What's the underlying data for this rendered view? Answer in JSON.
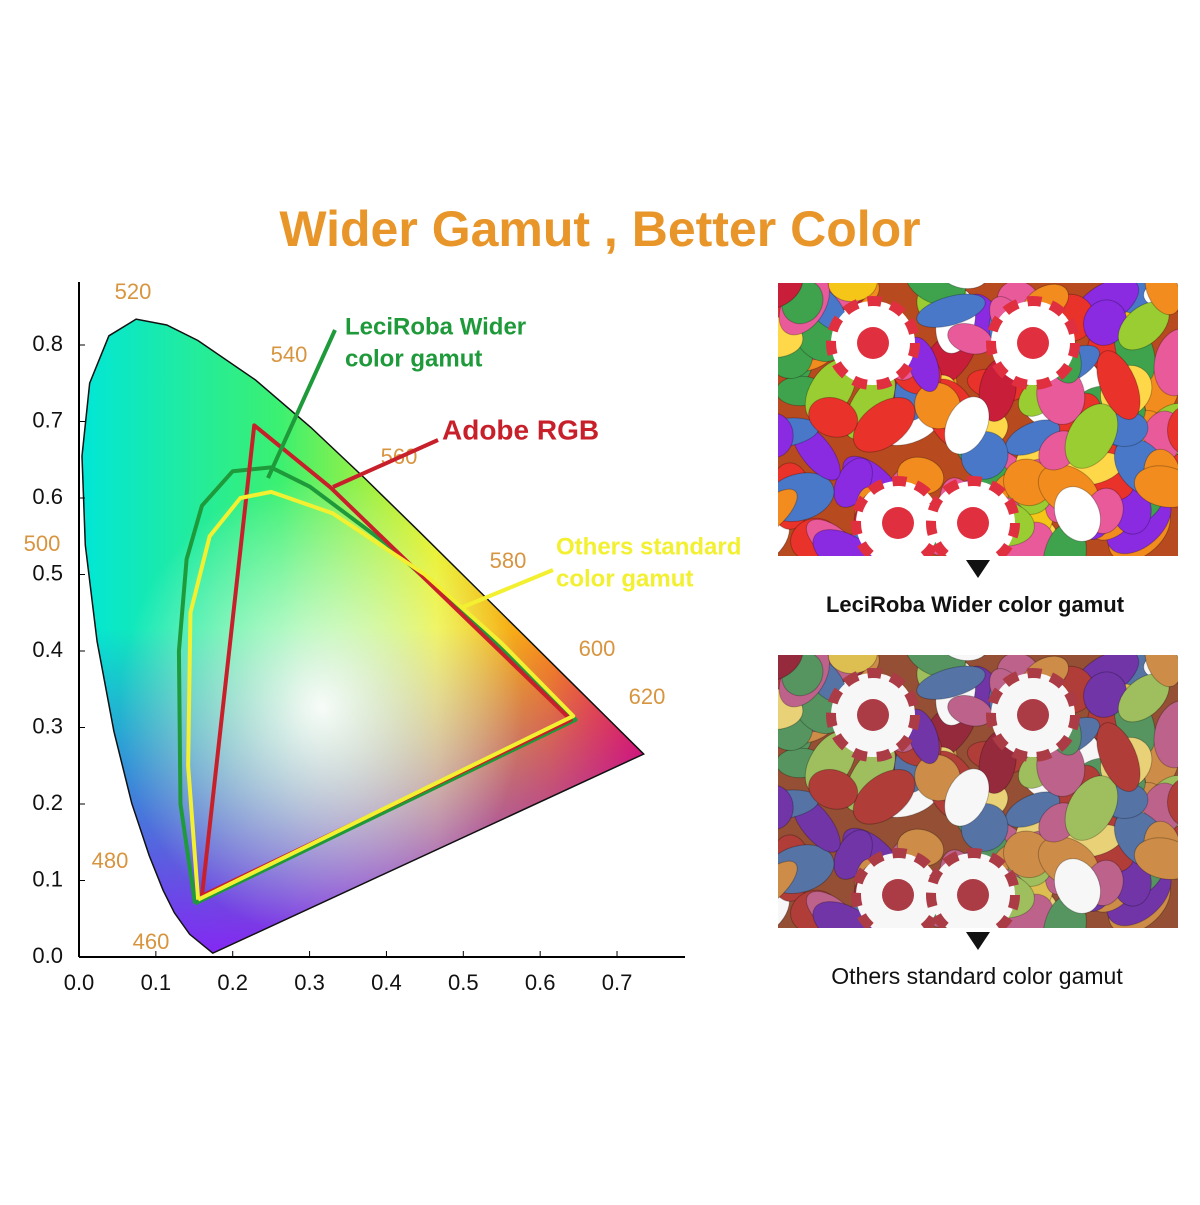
{
  "chart_data": {
    "type": "line",
    "title": "Wider Gamut , Better Color",
    "xlim": [
      0,
      0.79
    ],
    "ylim": [
      0,
      0.88
    ],
    "xticks": [
      {
        "value": 0,
        "label": "0.0"
      },
      0.1,
      0.2,
      0.3,
      0.4,
      0.5,
      0.6,
      0.7
    ],
    "yticks": [
      {
        "value": 0,
        "label": "0.0"
      },
      0.1,
      0.2,
      0.3,
      0.4,
      0.5,
      0.6,
      0.7,
      0.8
    ],
    "wavelength_labels": [
      520,
      540,
      560,
      580,
      600,
      620,
      500,
      480,
      460
    ],
    "series": [
      {
        "label_lines": [
          "LeciRoba Wider",
          "color gamut"
        ],
        "color": "#1e9a3a",
        "x": [
          0.151,
          0.132,
          0.13,
          0.14,
          0.16,
          0.2,
          0.25,
          0.3,
          0.4,
          0.5,
          0.646,
          0.151
        ],
        "y": [
          0.07,
          0.2,
          0.4,
          0.52,
          0.59,
          0.635,
          0.64,
          0.615,
          0.54,
          0.45,
          0.31,
          0.07
        ]
      },
      {
        "label_lines": [
          "Adobe RGB"
        ],
        "color": "#c8202a",
        "x": [
          0.16,
          0.228,
          0.327,
          0.64,
          0.16
        ],
        "y": [
          0.08,
          0.695,
          0.614,
          0.31,
          0.08
        ]
      },
      {
        "label_lines": [
          "Others standard",
          "color gamut"
        ],
        "color": "#f2f030",
        "x": [
          0.155,
          0.142,
          0.145,
          0.17,
          0.21,
          0.25,
          0.33,
          0.45,
          0.55,
          0.643,
          0.155
        ],
        "y": [
          0.075,
          0.25,
          0.45,
          0.55,
          0.6,
          0.608,
          0.58,
          0.5,
          0.41,
          0.315,
          0.075
        ]
      }
    ]
  },
  "captions": [
    "LeciRoba Wider color gamut",
    "Others standard color gamut"
  ]
}
